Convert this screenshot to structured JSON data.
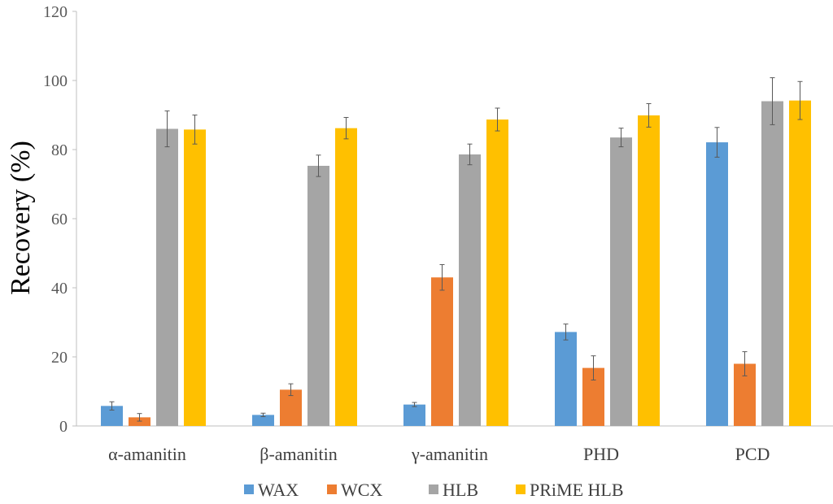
{
  "chart_data": {
    "type": "bar",
    "title": "",
    "xlabel": "",
    "ylabel": "Recovery (%)",
    "ylim": [
      0,
      120
    ],
    "yticks": [
      "0",
      "20",
      "40",
      "60",
      "80",
      "100",
      "120"
    ],
    "grid": false,
    "legend_position": "bottom",
    "categories": [
      "α-amanitin",
      "β-amanitin",
      "γ-amanitin",
      "PHD",
      "PCD"
    ],
    "series": [
      {
        "name": "WAX",
        "color": "#5b9bd5",
        "values": [
          5.8,
          3.2,
          6.2,
          27.2,
          82.1
        ],
        "errors": [
          1.2,
          0.5,
          0.6,
          2.3,
          4.3
        ]
      },
      {
        "name": "WCX",
        "color": "#ed7d31",
        "values": [
          2.5,
          10.5,
          43.0,
          16.8,
          18.0
        ],
        "errors": [
          1.1,
          1.7,
          3.7,
          3.5,
          3.5
        ]
      },
      {
        "name": "HLB",
        "color": "#a5a5a5",
        "values": [
          86.0,
          75.3,
          78.6,
          83.5,
          94.0
        ],
        "errors": [
          5.2,
          3.1,
          3.0,
          2.7,
          6.8
        ]
      },
      {
        "name": "PRiME HLB",
        "color": "#ffc000",
        "values": [
          85.8,
          86.2,
          88.7,
          89.9,
          94.2
        ],
        "errors": [
          4.2,
          3.1,
          3.3,
          3.4,
          5.5
        ]
      }
    ]
  }
}
